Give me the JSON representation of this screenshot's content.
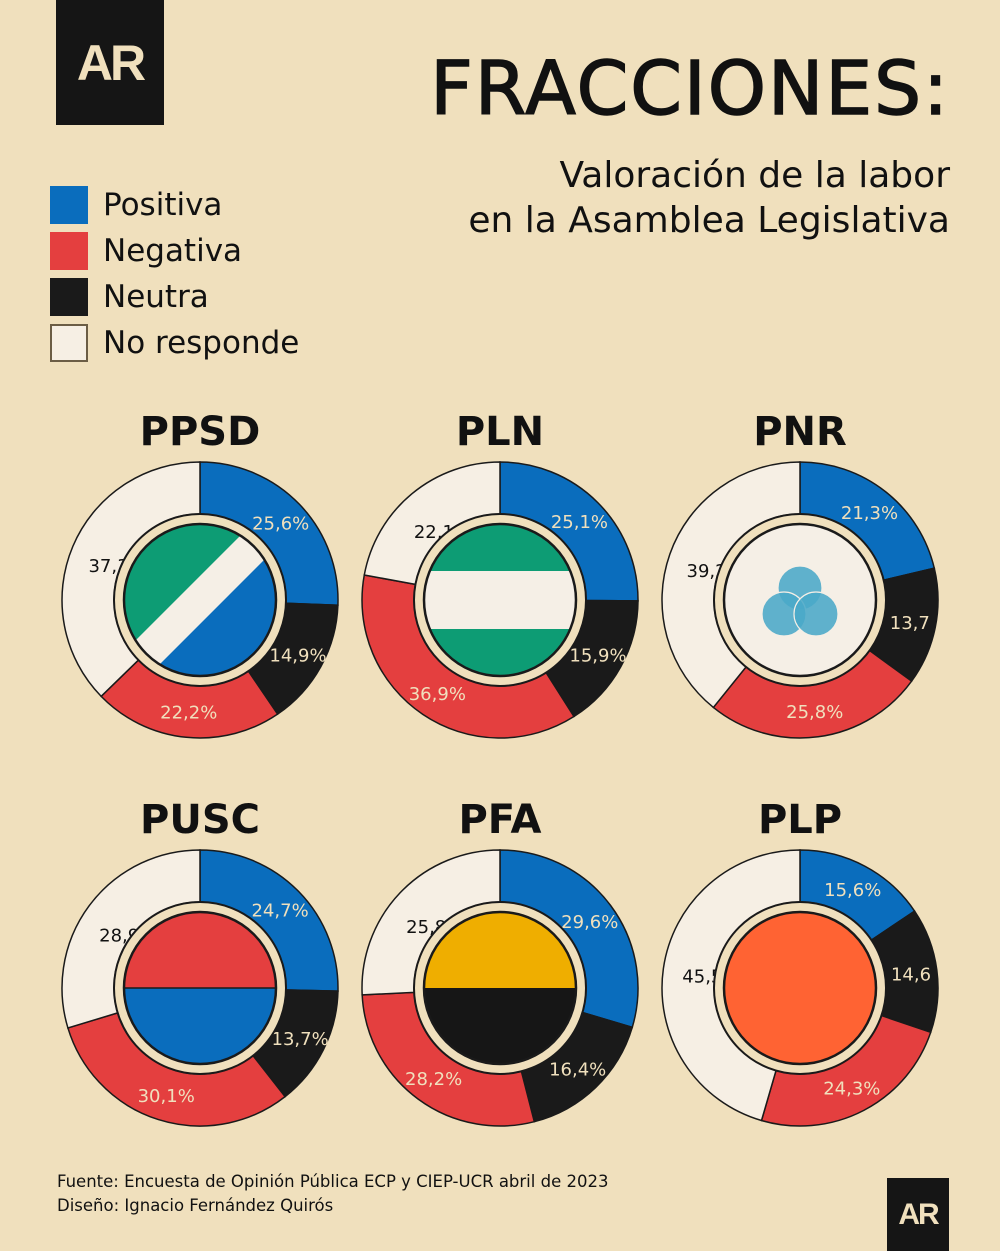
{
  "logo": "AR",
  "title": "FRACCIONES:",
  "subtitle": [
    "Valoración de la labor",
    "en la Asamblea Legislativa"
  ],
  "legend": [
    {
      "label": "Positiva",
      "color": "#0a6dbd"
    },
    {
      "label": "Negativa",
      "color": "#e43f3f"
    },
    {
      "label": "Neutra",
      "color": "#1a1a1a"
    },
    {
      "label": "No responde",
      "color": "#f6efe4"
    }
  ],
  "chart_data": [
    {
      "type": "pie",
      "title": "PPSD",
      "categories": [
        "Positiva",
        "Neutra",
        "Negativa",
        "No responde"
      ],
      "values": [
        25.6,
        14.9,
        22.2,
        37.3
      ],
      "labels": [
        "25,6%",
        "14,9%",
        "22,2%",
        "37,3%"
      ],
      "flag": "ppsd"
    },
    {
      "type": "pie",
      "title": "PLN",
      "categories": [
        "Positiva",
        "Neutra",
        "Negativa",
        "No responde"
      ],
      "values": [
        25.1,
        15.9,
        36.9,
        22.1
      ],
      "labels": [
        "25,1%",
        "15,9%",
        "36,9%",
        "22,1%"
      ],
      "flag": "pln"
    },
    {
      "type": "pie",
      "title": "PNR",
      "categories": [
        "Positiva",
        "Neutra",
        "Negativa",
        "No responde"
      ],
      "values": [
        21.3,
        13.7,
        25.8,
        39.2
      ],
      "labels": [
        "21,3%",
        "13,7",
        "25,8%",
        "39,2%"
      ],
      "flag": "pnr"
    },
    {
      "type": "pie",
      "title": "PUSC",
      "categories": [
        "Positiva",
        "Neutra",
        "Negativa",
        "No responde"
      ],
      "values": [
        24.7,
        13.7,
        30.1,
        28.9
      ],
      "labels": [
        "24,7%",
        "13,7%",
        "30,1%",
        "28,9%"
      ],
      "flag": "pusc"
    },
    {
      "type": "pie",
      "title": "PFA",
      "categories": [
        "Positiva",
        "Neutra",
        "Negativa",
        "No responde"
      ],
      "values": [
        29.6,
        16.4,
        28.2,
        25.8
      ],
      "labels": [
        "29,6%",
        "16,4%",
        "28,2%",
        "25,8%"
      ],
      "flag": "pfa"
    },
    {
      "type": "pie",
      "title": "PLP",
      "categories": [
        "Positiva",
        "Neutra",
        "Negativa",
        "No responde"
      ],
      "values": [
        15.6,
        14.6,
        24.3,
        45.5
      ],
      "labels": [
        "15,6%",
        "14,6",
        "24,3%",
        "45,5%"
      ],
      "flag": "plp"
    }
  ],
  "source": {
    "line1": "Fuente: Encuesta de Opinión Pública ECP y CIEP-UCR abril de 2023",
    "line2": "Diseño: Ignacio Fernández Quirós"
  }
}
